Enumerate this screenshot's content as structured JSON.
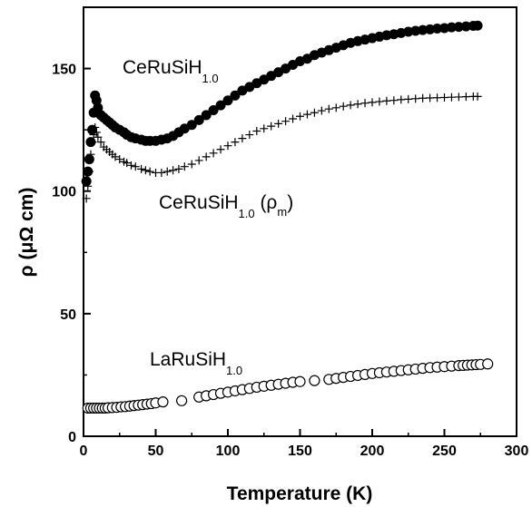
{
  "chart_data": {
    "type": "scatter",
    "title": "",
    "xlabel": "Temperature (K)",
    "ylabel": "ρ (μΩ cm)",
    "xlim": [
      0,
      300
    ],
    "ylim": [
      0,
      175
    ],
    "xticks": [
      0,
      50,
      100,
      150,
      200,
      250,
      300
    ],
    "yticks": [
      0,
      50,
      100,
      150
    ],
    "grid": false,
    "legend": "none",
    "annotations": [
      {
        "base": "CeRuSiH",
        "sub": "1.0",
        "suffix": ""
      },
      {
        "base": "CeRuSiH",
        "sub": "1.0",
        "suffix": " (ρ",
        "suffix_sub": "m",
        "suffix_end": ")"
      },
      {
        "base": "LaRuSiH",
        "sub": "1.0",
        "suffix": ""
      }
    ],
    "series": [
      {
        "marker": "filled-circle",
        "color": "#000000",
        "x": [
          2,
          3,
          4,
          5,
          6,
          7,
          8,
          9,
          10,
          12,
          14,
          16,
          18,
          20,
          22,
          25,
          28,
          30,
          33,
          36,
          40,
          43,
          46,
          50,
          54,
          58,
          62,
          66,
          70,
          75,
          80,
          85,
          90,
          95,
          100,
          105,
          110,
          115,
          120,
          125,
          130,
          135,
          140,
          145,
          150,
          155,
          160,
          165,
          170,
          175,
          180,
          185,
          190,
          195,
          200,
          205,
          210,
          215,
          220,
          225,
          230,
          235,
          240,
          245,
          250,
          255,
          260,
          265,
          270,
          273
        ],
        "y": [
          104,
          108,
          113,
          120,
          125,
          132,
          139,
          137,
          134,
          131,
          130,
          129,
          128,
          127,
          126,
          125,
          124,
          123,
          122,
          121.5,
          121,
          120.5,
          120.5,
          120.5,
          121,
          121.5,
          122.5,
          124,
          125.5,
          127,
          129,
          131,
          133,
          135,
          137,
          139,
          141,
          142.5,
          144,
          145.5,
          147,
          148.5,
          150,
          151.5,
          153,
          154,
          155.5,
          156.5,
          157.5,
          158.5,
          159.5,
          160.5,
          161.2,
          161.8,
          162.4,
          163,
          163.6,
          164,
          164.5,
          165,
          165.4,
          165.7,
          166,
          166.3,
          166.5,
          166.8,
          167,
          167.2,
          167.4,
          167.5
        ]
      },
      {
        "marker": "plus",
        "color": "#000000",
        "x": [
          2,
          3,
          4,
          5,
          6,
          7,
          8,
          9,
          10,
          12,
          14,
          16,
          18,
          20,
          22,
          25,
          28,
          30,
          33,
          36,
          40,
          43,
          46,
          50,
          54,
          58,
          62,
          66,
          70,
          75,
          80,
          85,
          90,
          95,
          100,
          105,
          110,
          115,
          120,
          125,
          130,
          135,
          140,
          145,
          150,
          155,
          160,
          165,
          170,
          175,
          180,
          185,
          190,
          195,
          200,
          205,
          210,
          215,
          220,
          225,
          230,
          235,
          240,
          245,
          250,
          255,
          260,
          265,
          270,
          273
        ],
        "y": [
          97,
          102,
          108,
          115,
          120,
          123,
          126,
          124,
          122,
          120,
          118,
          117,
          116,
          115,
          114,
          113,
          112,
          111.5,
          110.5,
          110,
          109,
          108.5,
          108,
          107.5,
          107.5,
          108,
          108.5,
          109,
          110,
          111,
          112.5,
          114,
          115.5,
          117,
          118.5,
          120,
          121.5,
          123,
          124.5,
          125.5,
          126.5,
          127.5,
          128.5,
          129.5,
          130.5,
          131.3,
          132,
          132.8,
          133.5,
          134,
          134.6,
          135.1,
          135.5,
          135.9,
          136.2,
          136.5,
          136.8,
          137,
          137.3,
          137.5,
          137.7,
          137.9,
          138,
          138.1,
          138.2,
          138.3,
          138.4,
          138.5,
          138.6,
          138.6
        ]
      },
      {
        "marker": "open-circle",
        "color": "#000000",
        "x": [
          3,
          5,
          7,
          9,
          11,
          13,
          15,
          17,
          20,
          23,
          26,
          29,
          32,
          35,
          38,
          41,
          44,
          47,
          50,
          55,
          68,
          80,
          85,
          90,
          95,
          100,
          105,
          110,
          115,
          120,
          125,
          130,
          135,
          140,
          145,
          150,
          160,
          170,
          175,
          180,
          185,
          190,
          195,
          200,
          205,
          210,
          215,
          220,
          225,
          230,
          235,
          240,
          245,
          250,
          255,
          260,
          263,
          266,
          269,
          272,
          275,
          280
        ],
        "y": [
          11.5,
          11.5,
          11.5,
          11.5,
          11.5,
          11.5,
          11.5,
          11.6,
          11.7,
          11.8,
          12.0,
          12.1,
          12.3,
          12.5,
          12.7,
          12.9,
          13.1,
          13.3,
          13.6,
          14.0,
          14.5,
          16,
          16.5,
          17,
          17.5,
          18,
          18.5,
          19,
          19.5,
          20,
          20.4,
          20.8,
          21.2,
          21.6,
          22,
          22.3,
          22.7,
          23.2,
          23.6,
          24,
          24.4,
          24.8,
          25.2,
          25.6,
          25.9,
          26.2,
          26.5,
          26.8,
          27.1,
          27.4,
          27.7,
          28,
          28.2,
          28.4,
          28.6,
          28.8,
          28.9,
          29.0,
          29.1,
          29.2,
          29.3,
          29.5
        ]
      }
    ]
  }
}
